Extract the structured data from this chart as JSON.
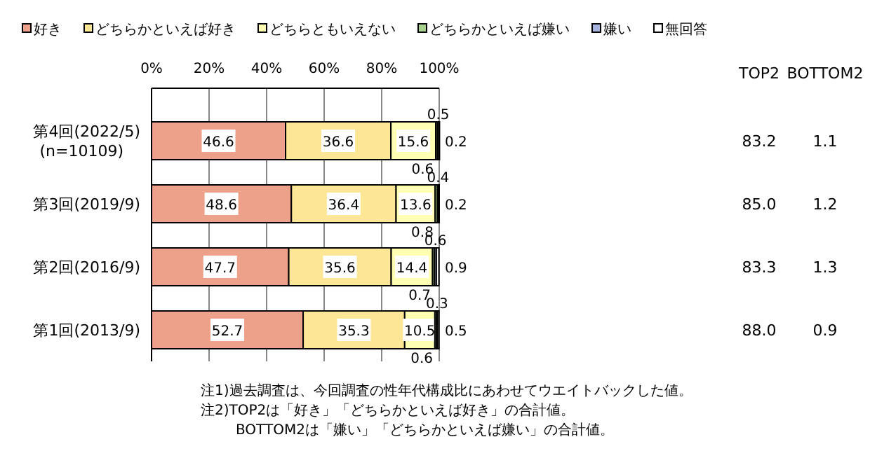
{
  "chart_data": {
    "type": "bar",
    "orientation": "horizontal",
    "stacked": true,
    "categories": [
      "第4回(2022/5)\n(n=10109)",
      "第3回(2019/9)",
      "第2回(2016/9)",
      "第1回(2013/9)"
    ],
    "series": [
      {
        "name": "好き",
        "color": "#eda18a",
        "values": [
          46.6,
          48.6,
          47.7,
          52.7
        ]
      },
      {
        "name": "どちらかといえば好き",
        "color": "#fde696",
        "values": [
          36.6,
          36.4,
          35.6,
          35.3
        ]
      },
      {
        "name": "どちらともいえない",
        "color": "#ffffb4",
        "values": [
          15.6,
          13.6,
          14.4,
          10.5
        ]
      },
      {
        "name": "どちらかといえば嫌い",
        "color": "#a6d08c",
        "values": [
          0.6,
          0.8,
          0.7,
          0.6
        ]
      },
      {
        "name": "嫌い",
        "color": "#a7b3dd",
        "values": [
          0.5,
          0.4,
          0.6,
          0.3
        ]
      },
      {
        "name": "無回答",
        "color": "#ffffff",
        "values": [
          0.2,
          0.2,
          0.9,
          0.5
        ]
      }
    ],
    "xlim": [
      0,
      100
    ],
    "xticks": [
      {
        "value": 0,
        "label": "0%"
      },
      {
        "value": 20,
        "label": "20%"
      },
      {
        "value": 40,
        "label": "40%"
      },
      {
        "value": 60,
        "label": "60%"
      },
      {
        "value": 80,
        "label": "80%"
      },
      {
        "value": 100,
        "label": "100%"
      }
    ],
    "grid": "x",
    "legend": "top",
    "data_labels": true,
    "annotations": [
      "TOP2",
      "BOTTOM2",
      "83.2",
      "1.1",
      "85.0",
      "1.2",
      "83.3",
      "1.3",
      "88.0",
      "0.9",
      "注1)過去調査は、今回調査の性年代構成比にあわせてウエイトバックした値。",
      "注2)TOP2は「好き」「どちらかといえば好き」の合計値。",
      "BOTTOM2は「嫌い」「どちらかといえば嫌い」の合計値。"
    ]
  }
}
